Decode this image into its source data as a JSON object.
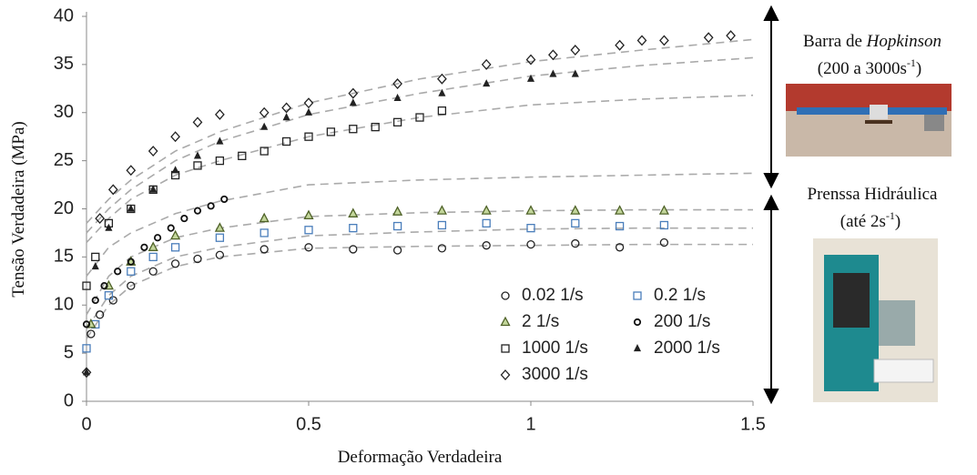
{
  "chart_data": {
    "type": "scatter",
    "xlabel": "Deformação Verdadeira",
    "ylabel": "Tensão Verdadeira (MPa)",
    "xlim": [
      0,
      1.5
    ],
    "xticks": [
      0,
      0.5,
      1,
      1.5
    ],
    "ylim": [
      0,
      40
    ],
    "yticks": [
      0,
      5,
      10,
      15,
      20,
      25,
      30,
      35,
      40
    ],
    "grid": false,
    "legend": "lower right",
    "series": [
      {
        "name": "0.02 1/s",
        "marker": "circle",
        "color": "#222222",
        "x": [
          0.01,
          0.03,
          0.06,
          0.1,
          0.15,
          0.2,
          0.25,
          0.3,
          0.4,
          0.5,
          0.6,
          0.7,
          0.8,
          0.9,
          1.0,
          1.1,
          1.2,
          1.3
        ],
        "values": [
          7,
          9,
          10.5,
          12,
          13.5,
          14.3,
          14.8,
          15.2,
          15.8,
          16,
          15.8,
          15.7,
          15.9,
          16.2,
          16.3,
          16.4,
          16,
          16.5
        ]
      },
      {
        "name": "0.2 1/s",
        "marker": "square",
        "color": "#4a7ebb",
        "x": [
          0,
          0.02,
          0.05,
          0.1,
          0.15,
          0.2,
          0.3,
          0.4,
          0.5,
          0.6,
          0.7,
          0.8,
          0.9,
          1.0,
          1.1,
          1.2,
          1.3
        ],
        "values": [
          5.5,
          8,
          11,
          13.5,
          15,
          16,
          17,
          17.5,
          17.8,
          18,
          18.2,
          18.3,
          18.5,
          18,
          18.5,
          18.2,
          18.3
        ]
      },
      {
        "name": "2 1/s",
        "marker": "triangle",
        "color": "#4f6228",
        "x": [
          0.01,
          0.05,
          0.1,
          0.15,
          0.2,
          0.3,
          0.4,
          0.5,
          0.6,
          0.7,
          0.8,
          0.9,
          1.0,
          1.1,
          1.2,
          1.3
        ],
        "values": [
          8,
          12,
          14.5,
          16,
          17.2,
          18,
          19,
          19.3,
          19.5,
          19.7,
          19.8,
          19.8,
          19.8,
          19.8,
          19.8,
          19.8
        ]
      },
      {
        "name": "200 1/s",
        "marker": "smallcircle",
        "color": "#111111",
        "x": [
          0,
          0.02,
          0.04,
          0.07,
          0.1,
          0.13,
          0.16,
          0.19,
          0.22,
          0.25,
          0.28,
          0.31
        ],
        "values": [
          8,
          10.5,
          12,
          13.5,
          14.5,
          16,
          17,
          18,
          19,
          19.8,
          20.3,
          21
        ]
      },
      {
        "name": "1000 1/s",
        "marker": "square",
        "color": "#222222",
        "x": [
          0,
          0.02,
          0.05,
          0.1,
          0.15,
          0.2,
          0.25,
          0.3,
          0.35,
          0.4,
          0.45,
          0.5,
          0.55,
          0.6,
          0.65,
          0.7,
          0.75,
          0.8
        ],
        "values": [
          12,
          15,
          18.5,
          20,
          22,
          23.5,
          24.5,
          25,
          25.5,
          26,
          27,
          27.5,
          28,
          28.3,
          28.5,
          29,
          29.5,
          30.2
        ]
      },
      {
        "name": "2000 1/s",
        "marker": "filled-triangle",
        "color": "#222222",
        "x": [
          0,
          0.02,
          0.05,
          0.1,
          0.15,
          0.2,
          0.25,
          0.3,
          0.4,
          0.45,
          0.5,
          0.6,
          0.7,
          0.8,
          0.9,
          1.0,
          1.05,
          1.1
        ],
        "values": [
          3,
          14,
          18,
          20,
          22,
          24,
          25.5,
          27,
          28.5,
          29.5,
          30,
          31,
          31.5,
          32,
          33,
          33.5,
          34,
          34
        ]
      },
      {
        "name": "3000 1/s",
        "marker": "diamond",
        "color": "#222222",
        "x": [
          0,
          0.03,
          0.06,
          0.1,
          0.15,
          0.2,
          0.25,
          0.3,
          0.4,
          0.45,
          0.5,
          0.6,
          0.7,
          0.8,
          0.9,
          1.0,
          1.05,
          1.1,
          1.2,
          1.25,
          1.3,
          1.4,
          1.45
        ],
        "values": [
          3,
          19,
          22,
          24,
          26,
          27.5,
          29,
          29.8,
          30,
          30.5,
          31,
          32,
          33,
          33.5,
          35,
          35.5,
          36,
          36.5,
          37,
          37.5,
          37.5,
          37.8,
          38
        ]
      }
    ],
    "fit_curves": {
      "x": [
        0,
        0.05,
        0.1,
        0.2,
        0.3,
        0.5,
        0.75,
        1.0,
        1.25,
        1.5
      ],
      "values": [
        [
          18.5,
          21,
          23,
          26,
          28,
          31,
          33.5,
          35.3,
          36.5,
          37.6
        ],
        [
          17.5,
          20,
          22,
          25,
          27,
          29.8,
          32,
          33.8,
          34.9,
          35.7
        ],
        [
          16.5,
          19,
          21,
          23.5,
          25,
          27.5,
          29.5,
          30.8,
          31.4,
          31.8
        ],
        [
          13,
          16,
          17.5,
          19.5,
          20.8,
          22.5,
          23,
          23.3,
          23.5,
          23.7
        ],
        [
          9,
          13,
          15,
          17,
          18,
          19.2,
          19.6,
          19.8,
          19.9,
          19.9
        ],
        [
          7.5,
          11,
          13,
          15,
          16,
          17.2,
          17.6,
          17.9,
          18,
          18
        ],
        [
          6.5,
          10,
          12,
          14,
          15,
          15.9,
          16.1,
          16.2,
          16.3,
          16.3
        ]
      ]
    }
  },
  "annotations": {
    "top": {
      "line1": "Barra de ",
      "line1_italic": "Hopkinson",
      "line2": "(200 a 3000s",
      "line2_sup": "-1",
      "line2_end": ")"
    },
    "bottom": {
      "line1": "Prenssa Hidráulica",
      "line2": "(até 2s",
      "line2_sup": "-1",
      "line2_end": ")"
    }
  }
}
